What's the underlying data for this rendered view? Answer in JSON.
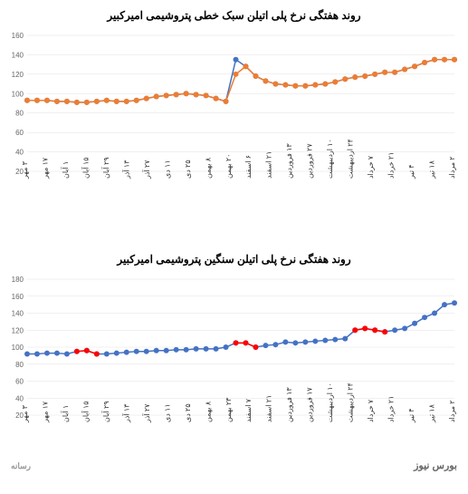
{
  "chart1": {
    "type": "line",
    "title": "روند هفتگی نرخ پلی اتیلن سبک خطی پتروشیمی امیرکبیر",
    "title_fontsize": 12,
    "title_color": "#000000",
    "background_color": "#ffffff",
    "grid_color": "#e0e0e0",
    "axis_color": "#666666",
    "ylim": [
      20,
      160
    ],
    "ytick_step": 20,
    "yticks": [
      20,
      40,
      60,
      80,
      100,
      120,
      140,
      160
    ],
    "ytick_fontsize": 8,
    "ytick_color": "#666666",
    "xlabels": [
      "۳ مهر",
      "۱۷ مهر",
      "۱ آبان",
      "۱۵ آبان",
      "۲۹ آبان",
      "۱۳ آذر",
      "۲۷ آذر",
      "۱۱ دی",
      "۲۵ دی",
      "۸ بهمن",
      "۲۰ بهمن",
      "۶ اسفند",
      "۲۱ اسفند",
      "۱۳ فروردین",
      "۲۷ فروردین",
      "۱۰ اردیبهشت",
      "۲۴ اردیبهشت",
      "۷ خرداد",
      "۲۱ خرداد",
      "۴ تیر",
      "۱۸ تیر",
      "۲ مرداد"
    ],
    "xlabel_fontsize": 8,
    "xlabel_color": "#333333",
    "series": [
      {
        "name": "series-blue",
        "color": "#4472c4",
        "line_width": 1.5,
        "marker": "circle",
        "marker_size": 3,
        "marker_fill": "#4472c4",
        "values": [
          93,
          93,
          93,
          92,
          92,
          91,
          91,
          92,
          93,
          92,
          92,
          93,
          95,
          97,
          98,
          99,
          100,
          99,
          98,
          95,
          92,
          135,
          128,
          118,
          113,
          110,
          109,
          108,
          108,
          109,
          110,
          112,
          115,
          117,
          118,
          120,
          122,
          122,
          125,
          128,
          132,
          135,
          135,
          135
        ]
      },
      {
        "name": "series-orange",
        "color": "#ed7d31",
        "line_width": 1.5,
        "marker": "circle",
        "marker_size": 3,
        "marker_fill": "#ed7d31",
        "values": [
          93,
          93,
          93,
          92,
          92,
          91,
          91,
          92,
          93,
          92,
          92,
          93,
          95,
          97,
          98,
          99,
          100,
          99,
          98,
          95,
          92,
          120,
          128,
          118,
          113,
          110,
          109,
          108,
          108,
          109,
          110,
          112,
          115,
          117,
          118,
          120,
          122,
          122,
          125,
          128,
          132,
          135,
          135,
          135
        ]
      }
    ]
  },
  "chart2": {
    "type": "line",
    "title": "روند هفتگی نرخ پلی اتیلن سنگین پتروشیمی امیرکبیر",
    "title_fontsize": 12,
    "title_color": "#000000",
    "background_color": "#ffffff",
    "grid_color": "#e0e0e0",
    "axis_color": "#666666",
    "ylim": [
      20,
      180
    ],
    "ytick_step": 20,
    "yticks": [
      20,
      40,
      60,
      80,
      100,
      120,
      140,
      160,
      180
    ],
    "ytick_fontsize": 8,
    "ytick_color": "#666666",
    "xlabels": [
      "۳ مهر",
      "۱۷ مهر",
      "۱ آبان",
      "۱۵ آبان",
      "۲۹ آبان",
      "۱۳ آذر",
      "۲۷ آذر",
      "۱۱ دی",
      "۲۵ دی",
      "۸ بهمن",
      "۲۳ بهمن",
      "۷ اسفند",
      "۲۱ اسفند",
      "۱۳ فروردین",
      "۱۷ فروردین",
      "۱۰ اردیبهشت",
      "۲۴ اردیبهشت",
      "۷ خرداد",
      "۲۱ خرداد",
      "۴ تیر",
      "۱۸ تیر",
      "۲ مرداد"
    ],
    "xlabel_fontsize": 8,
    "xlabel_color": "#333333",
    "series": [
      {
        "name": "series-blue",
        "color": "#4472c4",
        "line_width": 1.5,
        "marker": "circle",
        "marker_size": 3,
        "marker_fill": "#4472c4",
        "values": [
          92,
          92,
          93,
          93,
          92,
          95,
          96,
          92,
          92,
          93,
          94,
          95,
          95,
          96,
          96,
          97,
          97,
          98,
          98,
          98,
          100,
          105,
          105,
          100,
          102,
          103,
          106,
          105,
          106,
          107,
          108,
          109,
          110,
          120,
          122,
          120,
          118,
          120,
          122,
          128,
          135,
          140,
          150,
          152
        ]
      },
      {
        "name": "series-red",
        "color": "#ff0000",
        "line_width": 1.5,
        "marker": "circle",
        "marker_size": 3,
        "marker_fill": "#ff0000",
        "indices": [
          5,
          6,
          7,
          21,
          22,
          23,
          33,
          34,
          35,
          36
        ],
        "values": [
          95,
          96,
          92,
          105,
          105,
          100,
          120,
          122,
          120,
          118
        ]
      }
    ]
  },
  "watermark_right": "بورس نیوز",
  "watermark_left": "رسانه"
}
